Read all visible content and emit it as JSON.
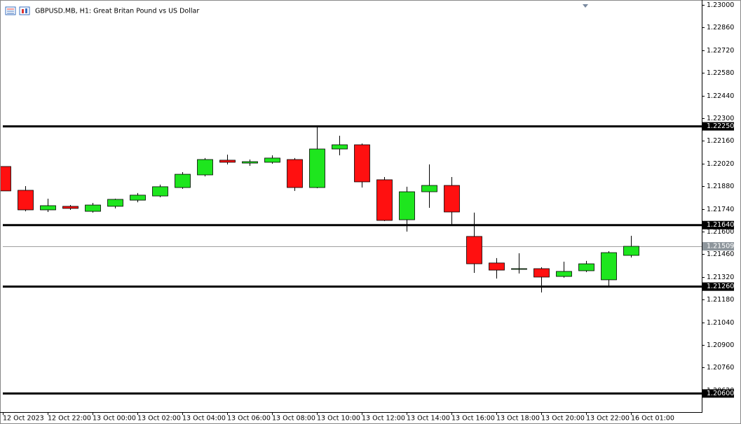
{
  "chart_data": {
    "type": "candlestick",
    "title": "GBPUSD.MB, H1:  Great Britan Pound vs US Dollar",
    "categories": [
      "12 Oct 2023",
      null,
      "12 Oct 22:00",
      null,
      "13 Oct 00:00",
      null,
      "13 Oct 02:00",
      null,
      "13 Oct 04:00",
      null,
      "13 Oct 06:00",
      null,
      "13 Oct 08:00",
      null,
      "13 Oct 10:00",
      null,
      "13 Oct 12:00",
      null,
      "13 Oct 14:00",
      null,
      "13 Oct 16:00",
      null,
      "13 Oct 18:00",
      null,
      "13 Oct 20:00",
      null,
      "13 Oct 22:00",
      null,
      "16 Oct 01:00"
    ],
    "open": [
      1.22002,
      1.21855,
      1.21734,
      1.21756,
      1.21725,
      1.21756,
      1.21794,
      1.2182,
      1.21872,
      1.2195,
      1.22041,
      1.22023,
      1.22028,
      1.22045,
      1.21872,
      1.2211,
      1.22136,
      1.2192,
      1.21673,
      1.21846,
      1.21885,
      1.2157,
      1.21406,
      1.21367,
      1.21371,
      1.21323,
      1.21358,
      1.21302,
      1.21453
    ],
    "high": [
      1.22002,
      1.21881,
      1.21803,
      1.21764,
      1.21777,
      1.21803,
      1.21838,
      1.2189,
      1.21967,
      1.22054,
      1.22075,
      1.22045,
      1.22071,
      1.22054,
      1.22248,
      1.22192,
      1.22144,
      1.21937,
      1.21877,
      1.22015,
      1.21937,
      1.21717,
      1.21436,
      1.21466,
      1.2138,
      1.21414,
      1.21419,
      1.21479,
      1.21574
    ],
    "low": [
      1.21851,
      1.21725,
      1.21721,
      1.21734,
      1.21717,
      1.21743,
      1.21781,
      1.21812,
      1.21864,
      1.21941,
      1.22015,
      1.22006,
      1.22019,
      1.21851,
      1.21868,
      1.22071,
      1.21872,
      1.21665,
      1.216,
      1.21747,
      1.21635,
      1.21345,
      1.2131,
      1.21341,
      1.21224,
      1.21315,
      1.2135,
      1.21259,
      1.2144
    ],
    "close": [
      1.21851,
      1.21734,
      1.2176,
      1.21743,
      1.21764,
      1.21799,
      1.21825,
      1.21877,
      1.21954,
      1.22045,
      1.22028,
      1.22032,
      1.22054,
      1.21872,
      1.2211,
      1.22136,
      1.21907,
      1.21669,
      1.21846,
      1.21885,
      1.21721,
      1.21401,
      1.21362,
      1.21371,
      1.21319,
      1.21354,
      1.21401,
      1.2147,
      1.21509
    ],
    "up_color": "#1ee61e",
    "down_color": "#ff1010",
    "ylim": [
      1.20485,
      1.23013
    ],
    "yticks": [
      {
        "value": 1.23,
        "label": "1.23000"
      },
      {
        "value": 1.2286,
        "label": "1.22860"
      },
      {
        "value": 1.2272,
        "label": "1.22720"
      },
      {
        "value": 1.2258,
        "label": "1.22580"
      },
      {
        "value": 1.2244,
        "label": "1.22440"
      },
      {
        "value": 1.223,
        "label": "1.22300"
      },
      {
        "value": 1.2216,
        "label": "1.22160"
      },
      {
        "value": 1.2202,
        "label": "1.22020"
      },
      {
        "value": 1.2188,
        "label": "1.21880"
      },
      {
        "value": 1.2174,
        "label": "1.21740"
      },
      {
        "value": 1.216,
        "label": "1.21600"
      },
      {
        "value": 1.2146,
        "label": "1.21460"
      },
      {
        "value": 1.2132,
        "label": "1.21320"
      },
      {
        "value": 1.2118,
        "label": "1.21180"
      },
      {
        "value": 1.2104,
        "label": "1.21040"
      },
      {
        "value": 1.209,
        "label": "1.20900"
      },
      {
        "value": 1.2076,
        "label": "1.20760"
      },
      {
        "value": 1.2062,
        "label": "1.20620"
      }
    ],
    "levels": [
      {
        "value": 1.2225,
        "label": "1.22250"
      },
      {
        "value": 1.2164,
        "label": "1.21640"
      },
      {
        "value": 1.2126,
        "label": "1.21260"
      },
      {
        "value": 1.206,
        "label": "1.20600"
      }
    ],
    "current_price": {
      "value": 1.21509,
      "label": "1.21509"
    }
  }
}
